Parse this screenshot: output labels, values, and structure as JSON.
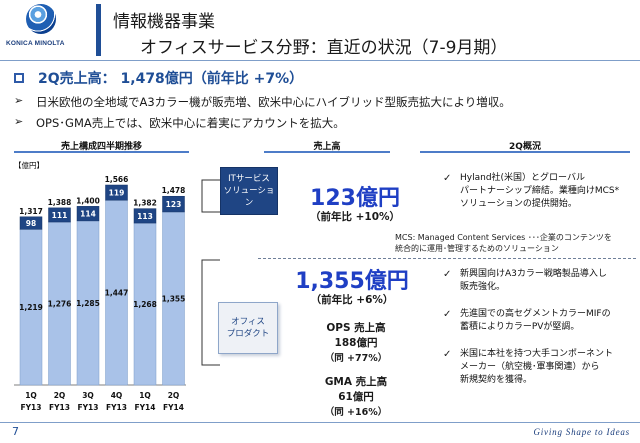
{
  "header": {
    "logo_text": "KONICA MINOLTA",
    "title_line1": "情報機器事業",
    "title_line2": "オフィスサービス分野：直近の状況（7-9月期）"
  },
  "headline": "2Q売上高： 1,478億円（前年比 +7%）",
  "bullets": [
    "日米欧他の全地域でA3カラー機が販売増、欧米中心にハイブリッド型販売拡大により増収。",
    "OPS･GMA売上では、欧米中心に着実にアカウントを拡大。"
  ],
  "columns": {
    "chart": "売上構成四半期推移",
    "sales": "売上高",
    "overview": "2Q概況"
  },
  "chart_data": {
    "type": "bar",
    "stacked": true,
    "unit_label": "【億円】",
    "categories": [
      "1Q FY13",
      "2Q FY13",
      "3Q FY13",
      "4Q FY13",
      "1Q FY14",
      "2Q FY14"
    ],
    "category_lines": [
      [
        "1Q",
        "FY13"
      ],
      [
        "2Q",
        "FY13"
      ],
      [
        "3Q",
        "FY13"
      ],
      [
        "4Q",
        "FY13"
      ],
      [
        "1Q",
        "FY14"
      ],
      [
        "2Q",
        "FY14"
      ]
    ],
    "series": [
      {
        "values": [
          1219,
          1276,
          1285,
          1447,
          1268,
          1355
        ],
        "color": "#a9c2e8"
      },
      {
        "values": [
          98,
          111,
          114,
          119,
          113,
          123
        ],
        "color": "#1f4584"
      }
    ],
    "totals": [
      1317,
      1388,
      1400,
      1566,
      1382,
      1478
    ],
    "ylim": [
      0,
      1566
    ]
  },
  "it": {
    "box_line1": "ITサービス",
    "box_line2": "ソリューション",
    "sales": "123億円",
    "yoy": "（前年比 +10%）",
    "check": "✓",
    "point_line1": "Hyland社(米国）とグローバル",
    "point_line2": "パートナーシップ締結。業種向けMCS*",
    "point_line3": "ソリューションの提供開始。",
    "mcs_line1": "MCS: Managed Content Services ･･･企業のコンテンツを",
    "mcs_line2": "統合的に運用･管理するためのソリューション"
  },
  "office": {
    "box_line1": "オフィス",
    "box_line2": "プロダクト",
    "sales": "1,355億円",
    "yoy": "（前年比 +6%）",
    "ops_label": "OPS 売上高",
    "ops_value": "188億円",
    "ops_yoy": "（同 +77%）",
    "gma_label": "GMA 売上高",
    "gma_value": "61億円",
    "gma_yoy": "（同 +16%）",
    "check": "✓",
    "points": [
      {
        "line1": "新興国向けA3カラー戦略製品導入し",
        "line2": "販売強化。"
      },
      {
        "line1": "先進国での高セグメントカラーMIFの",
        "line2": "蓄積によりカラーPVが堅調。"
      },
      {
        "line1": "米国に本社を持つ大手コンポーネント",
        "line2": "メーカー（航空機･軍事関連）から",
        "line3": "新規契約を獲得。"
      }
    ]
  },
  "footer": {
    "page": "7",
    "tagline": "Giving Shape to Ideas"
  }
}
